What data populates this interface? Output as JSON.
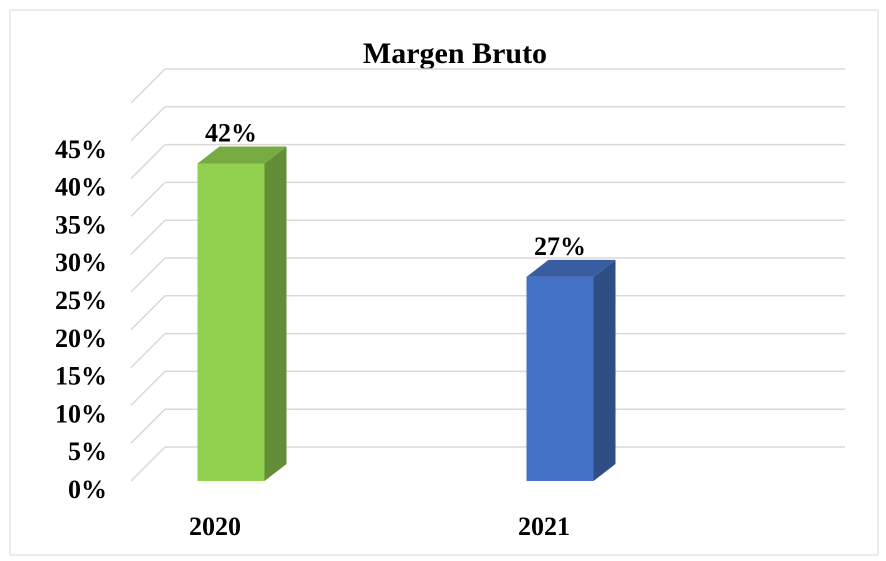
{
  "chart_data": {
    "type": "bar3d",
    "title": "Margen Bruto",
    "categories": [
      "2020",
      "2021"
    ],
    "values": [
      42,
      27
    ],
    "value_labels": [
      "42%",
      "27%"
    ],
    "colors": [
      "#92d050",
      "#4472c4"
    ],
    "ylim": [
      0,
      50
    ],
    "yticks": [
      {
        "value": 0,
        "label": "0%"
      },
      {
        "value": 5,
        "label": "5%"
      },
      {
        "value": 10,
        "label": "10%"
      },
      {
        "value": 15,
        "label": "15%"
      },
      {
        "value": 20,
        "label": "20%"
      },
      {
        "value": 25,
        "label": "25%"
      },
      {
        "value": 30,
        "label": "30%"
      },
      {
        "value": 35,
        "label": "35%"
      },
      {
        "value": 40,
        "label": "40%"
      },
      {
        "value": 45,
        "label": "45%"
      }
    ],
    "grid": true
  }
}
